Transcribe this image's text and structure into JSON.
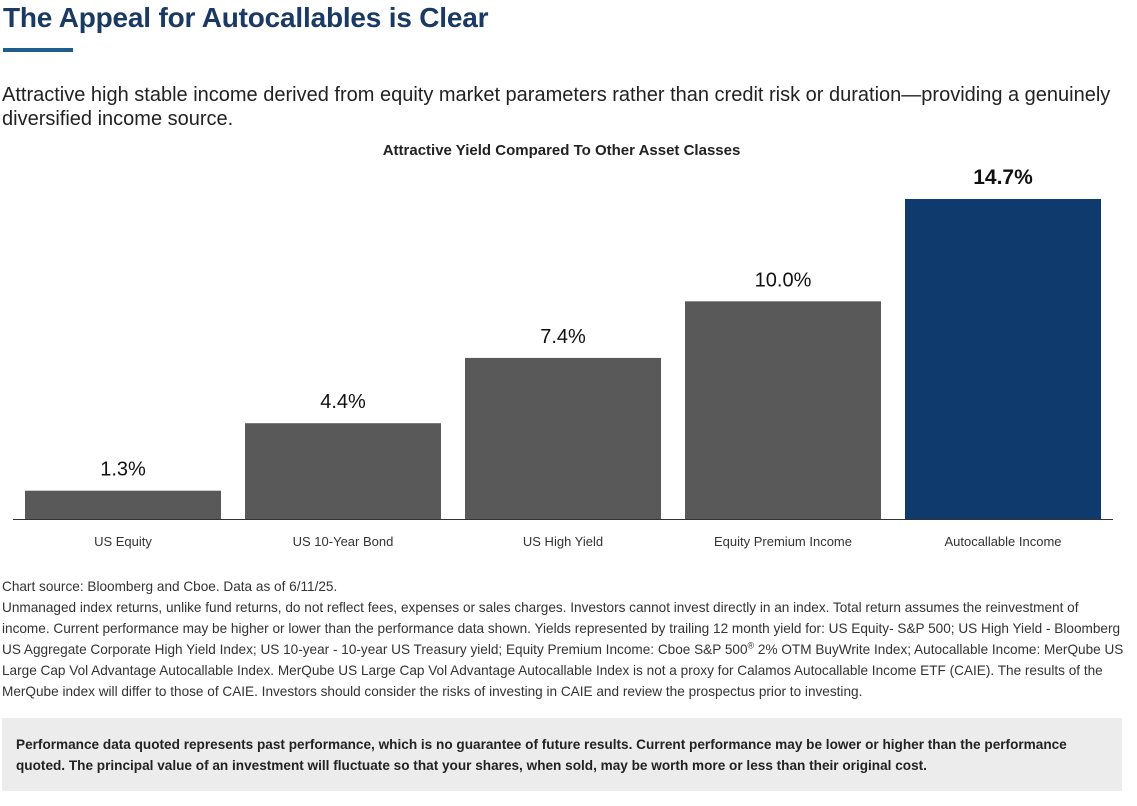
{
  "header": {
    "title": "The Appeal for Autocallables is Clear",
    "subtitle": "Attractive high stable income derived from equity market parameters rather than credit risk or duration—providing a genuinely diversified income source."
  },
  "chart_data": {
    "type": "bar",
    "title": "Attractive Yield Compared To Other Asset Classes",
    "categories": [
      "US Equity",
      "US 10-Year Bond",
      "US High Yield",
      "Equity Premium Income",
      "Autocallable Income"
    ],
    "values": [
      1.3,
      4.4,
      7.4,
      10.0,
      14.7
    ],
    "value_labels": [
      "1.3%",
      "4.4%",
      "7.4%",
      "10.0%",
      "14.7%"
    ],
    "xlabel": "",
    "ylabel": "",
    "ylim": [
      0,
      16.4
    ],
    "grid": false,
    "highlight_index": 4,
    "colors": {
      "default": "#595959",
      "highlight": "#0e3a6d",
      "axis": "#333333"
    }
  },
  "notes": {
    "source": "Chart source: Bloomberg and Cboe. Data as of 6/11/25.",
    "body_part1": "Unmanaged index returns, unlike fund returns, do not reflect fees, expenses or sales charges. Investors cannot invest directly in an index. Total return assumes the reinvestment of income. Current performance may be higher or lower than the performance data shown. Yields represented by trailing 12 month yield for: US Equity- S&P 500; US High Yield - Bloomberg US Aggregate Corporate High Yield Index; US 10-year - 10-year US Treasury yield; Equity Premium Income: Cboe S&P 500",
    "registered_mark": "®",
    "body_part2": " 2% OTM BuyWrite Index; Autocallable Income: MerQube US Large Cap Vol Advantage Autocallable Index. MerQube US Large Cap Vol Advantage Autocallable Index is not a proxy for Calamos Autocallable Income ETF (CAIE). The results of the MerQube index will differ to those of CAIE. Investors should consider the risks of investing in CAIE and review the prospectus prior to investing."
  },
  "disclaimer": "Performance data quoted represents past performance, which is no guarantee of future results. Current performance may be lower or higher than the performance quoted. The principal value of an investment will fluctuate so that your shares, when sold, may be worth more or less than their original cost."
}
